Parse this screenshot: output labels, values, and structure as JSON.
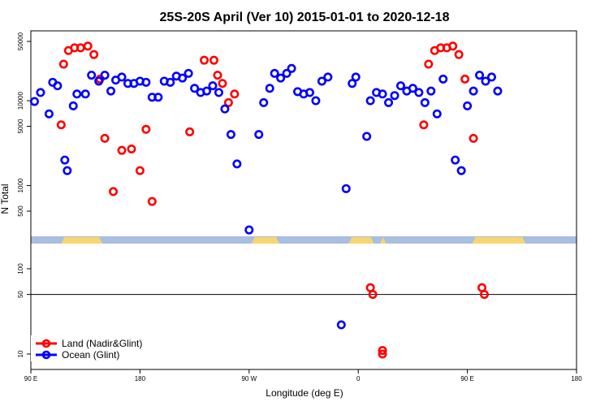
{
  "chart_data": {
    "type": "scatter",
    "title": "25S-20S April (Ver 10)   2015-01-01 to 2020-12-18",
    "xlabel": "Longitude (deg E)",
    "ylabel": "N Total",
    "y_scale": "log",
    "x_ticks": [
      {
        "value": 90,
        "label": "90 E"
      },
      {
        "value": 180,
        "label": "180"
      },
      {
        "value": 270,
        "label": "90 W"
      },
      {
        "value": 360,
        "label": "0"
      },
      {
        "value": 450,
        "label": "90 E"
      },
      {
        "value": 540,
        "label": "180"
      }
    ],
    "upper_y_ticks": [
      500,
      1000,
      5000,
      10000,
      50000
    ],
    "lower_y_ticks": [
      10,
      50,
      100
    ],
    "reference_line_y": 50,
    "legend": {
      "position": "bottom-left"
    },
    "colors": {
      "land": "#ff0000",
      "ocean": "#0000ff",
      "map_ocean": "#a7bfe0",
      "map_land": "#f8d66f"
    },
    "series": [
      {
        "name": "Land (Nadir&Glint)",
        "color": "#ff0000",
        "points": [
          [
            115,
            5200
          ],
          [
            117,
            27000
          ],
          [
            121,
            39000
          ],
          [
            126,
            42000
          ],
          [
            131,
            42000
          ],
          [
            137,
            44000
          ],
          [
            142,
            35000
          ],
          [
            147,
            18000
          ],
          [
            151,
            3600
          ],
          [
            158,
            850
          ],
          [
            165,
            2600
          ],
          [
            173,
            2700
          ],
          [
            180,
            1500
          ],
          [
            185,
            4600
          ],
          [
            190,
            650
          ],
          [
            221,
            4300
          ],
          [
            233,
            30000
          ],
          [
            241,
            30000
          ],
          [
            244,
            20000
          ],
          [
            248,
            16000
          ],
          [
            253,
            9500
          ],
          [
            258,
            12000
          ],
          [
            370,
            60
          ],
          [
            372,
            50
          ],
          [
            380,
            11
          ],
          [
            380,
            10
          ],
          [
            414,
            5200
          ],
          [
            418,
            27000
          ],
          [
            423,
            39000
          ],
          [
            428,
            42000
          ],
          [
            433,
            42000
          ],
          [
            438,
            44000
          ],
          [
            443,
            35000
          ],
          [
            448,
            18000
          ],
          [
            455,
            3600
          ],
          [
            462,
            60
          ],
          [
            464,
            50
          ]
        ]
      },
      {
        "name": "Ocean (Glint)",
        "color": "#0000ff",
        "points": [
          [
            93,
            9800
          ],
          [
            98,
            12500
          ],
          [
            105,
            7000
          ],
          [
            108,
            16500
          ],
          [
            112,
            15000
          ],
          [
            118,
            2000
          ],
          [
            120,
            1500
          ],
          [
            125,
            8700
          ],
          [
            128,
            12000
          ],
          [
            135,
            12000
          ],
          [
            140,
            20000
          ],
          [
            146,
            17000
          ],
          [
            151,
            20000
          ],
          [
            156,
            13000
          ],
          [
            160,
            17500
          ],
          [
            165,
            19000
          ],
          [
            170,
            16000
          ],
          [
            175,
            16000
          ],
          [
            180,
            17000
          ],
          [
            185,
            16500
          ],
          [
            190,
            11000
          ],
          [
            195,
            11000
          ],
          [
            200,
            17000
          ],
          [
            205,
            16500
          ],
          [
            210,
            19500
          ],
          [
            215,
            18500
          ],
          [
            220,
            21000
          ],
          [
            225,
            14000
          ],
          [
            230,
            12500
          ],
          [
            235,
            13000
          ],
          [
            240,
            15000
          ],
          [
            245,
            12500
          ],
          [
            250,
            8000
          ],
          [
            255,
            4000
          ],
          [
            260,
            1800
          ],
          [
            270,
            300
          ],
          [
            278,
            4000
          ],
          [
            282,
            9500
          ],
          [
            287,
            14000
          ],
          [
            291,
            21000
          ],
          [
            296,
            18500
          ],
          [
            301,
            21000
          ],
          [
            305,
            24000
          ],
          [
            310,
            12800
          ],
          [
            315,
            12000
          ],
          [
            320,
            12500
          ],
          [
            325,
            10000
          ],
          [
            330,
            17000
          ],
          [
            335,
            19000
          ],
          [
            346,
            22
          ],
          [
            350,
            920
          ],
          [
            355,
            16000
          ],
          [
            358,
            19000
          ],
          [
            367,
            3800
          ],
          [
            370,
            10000
          ],
          [
            375,
            12500
          ],
          [
            380,
            12000
          ],
          [
            385,
            9500
          ],
          [
            390,
            11500
          ],
          [
            395,
            15000
          ],
          [
            400,
            13000
          ],
          [
            405,
            14000
          ],
          [
            410,
            12500
          ],
          [
            415,
            9500
          ],
          [
            420,
            13000
          ],
          [
            425,
            7000
          ],
          [
            430,
            18000
          ],
          [
            440,
            2000
          ],
          [
            445,
            1500
          ],
          [
            450,
            8700
          ],
          [
            455,
            13000
          ],
          [
            460,
            20000
          ],
          [
            465,
            17000
          ],
          [
            470,
            19000
          ],
          [
            475,
            13000
          ]
        ]
      }
    ]
  }
}
